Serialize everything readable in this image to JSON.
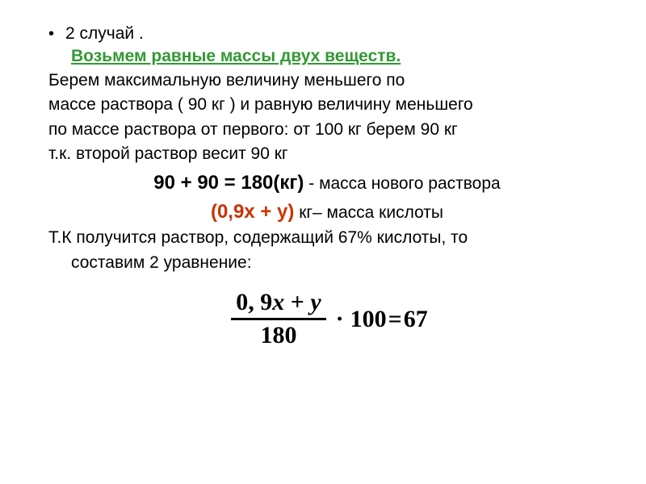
{
  "bullet_text": "2 случай .",
  "heading": "Возьмем  равные массы двух веществ.",
  "line1": "Берем максимальную величину  меньшего по",
  "line2": "массе раствора ( 90 кг ) и равную величину меньшего",
  "line3": "по массе раствора от первого: от 100 кг берем 90 кг",
  "line4": "т.к. второй раствор весит 90 кг",
  "eq1_bold": "90 + 90 = 180(кг)",
  "eq1_rest": " - масса нового раствора",
  "eq2_red": "(0,9х + у)",
  "eq2_rest": " кг– масса кислоты",
  "line5a": "Т.К получится раствор, содержащий   67% кислоты, то",
  "line5b": "составим  2  уравнение:",
  "formula": {
    "num_left": "0, 9",
    "num_var1": "x",
    "num_plus": " + ",
    "num_var2": "y",
    "den": "180",
    "dot": "·",
    "mult": "100",
    "eq": " = ",
    "rhs": "67"
  },
  "colors": {
    "heading_green": "#339933",
    "red": "#cc3300",
    "text": "#000000",
    "background": "#ffffff"
  },
  "font_sizes": {
    "body": 21,
    "eq_bold": 24,
    "formula": 30
  }
}
